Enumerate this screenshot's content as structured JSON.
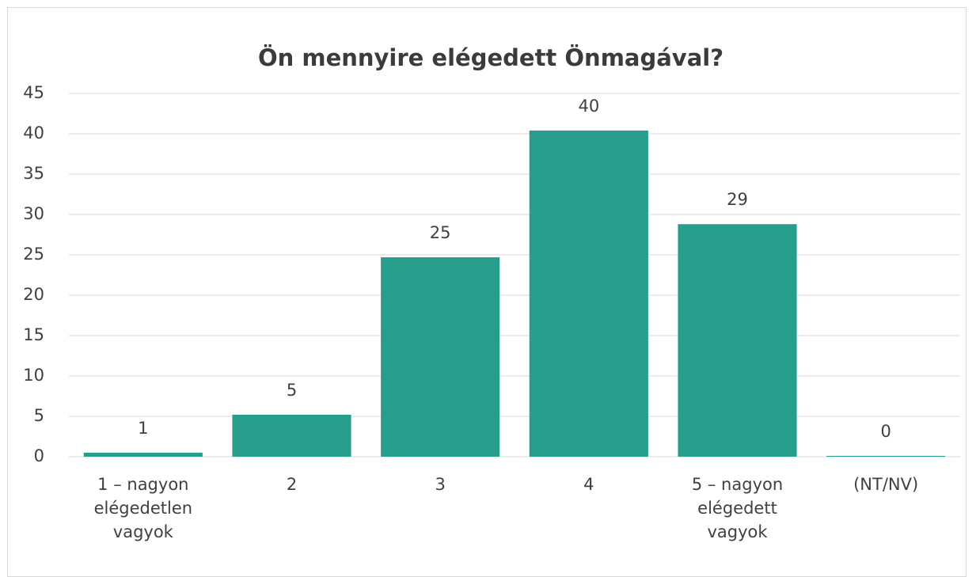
{
  "chart_data": {
    "type": "bar",
    "title": "Ön mennyire elégedett Önmagával?",
    "categories": [
      "1 – nagyon elégedetlen vagyok",
      "2",
      "3",
      "4",
      "5 – nagyon elégedett vagyok",
      "(NT/NV)"
    ],
    "values": [
      0.5,
      5.2,
      24.7,
      40.4,
      28.8,
      0.1
    ],
    "value_labels": [
      "1",
      "5",
      "25",
      "40",
      "29",
      "0"
    ],
    "color": "#279e8c",
    "ylim": [
      0,
      45
    ],
    "yticks": [
      0,
      5,
      10,
      15,
      20,
      25,
      30,
      35,
      40,
      45
    ],
    "grid": true
  }
}
